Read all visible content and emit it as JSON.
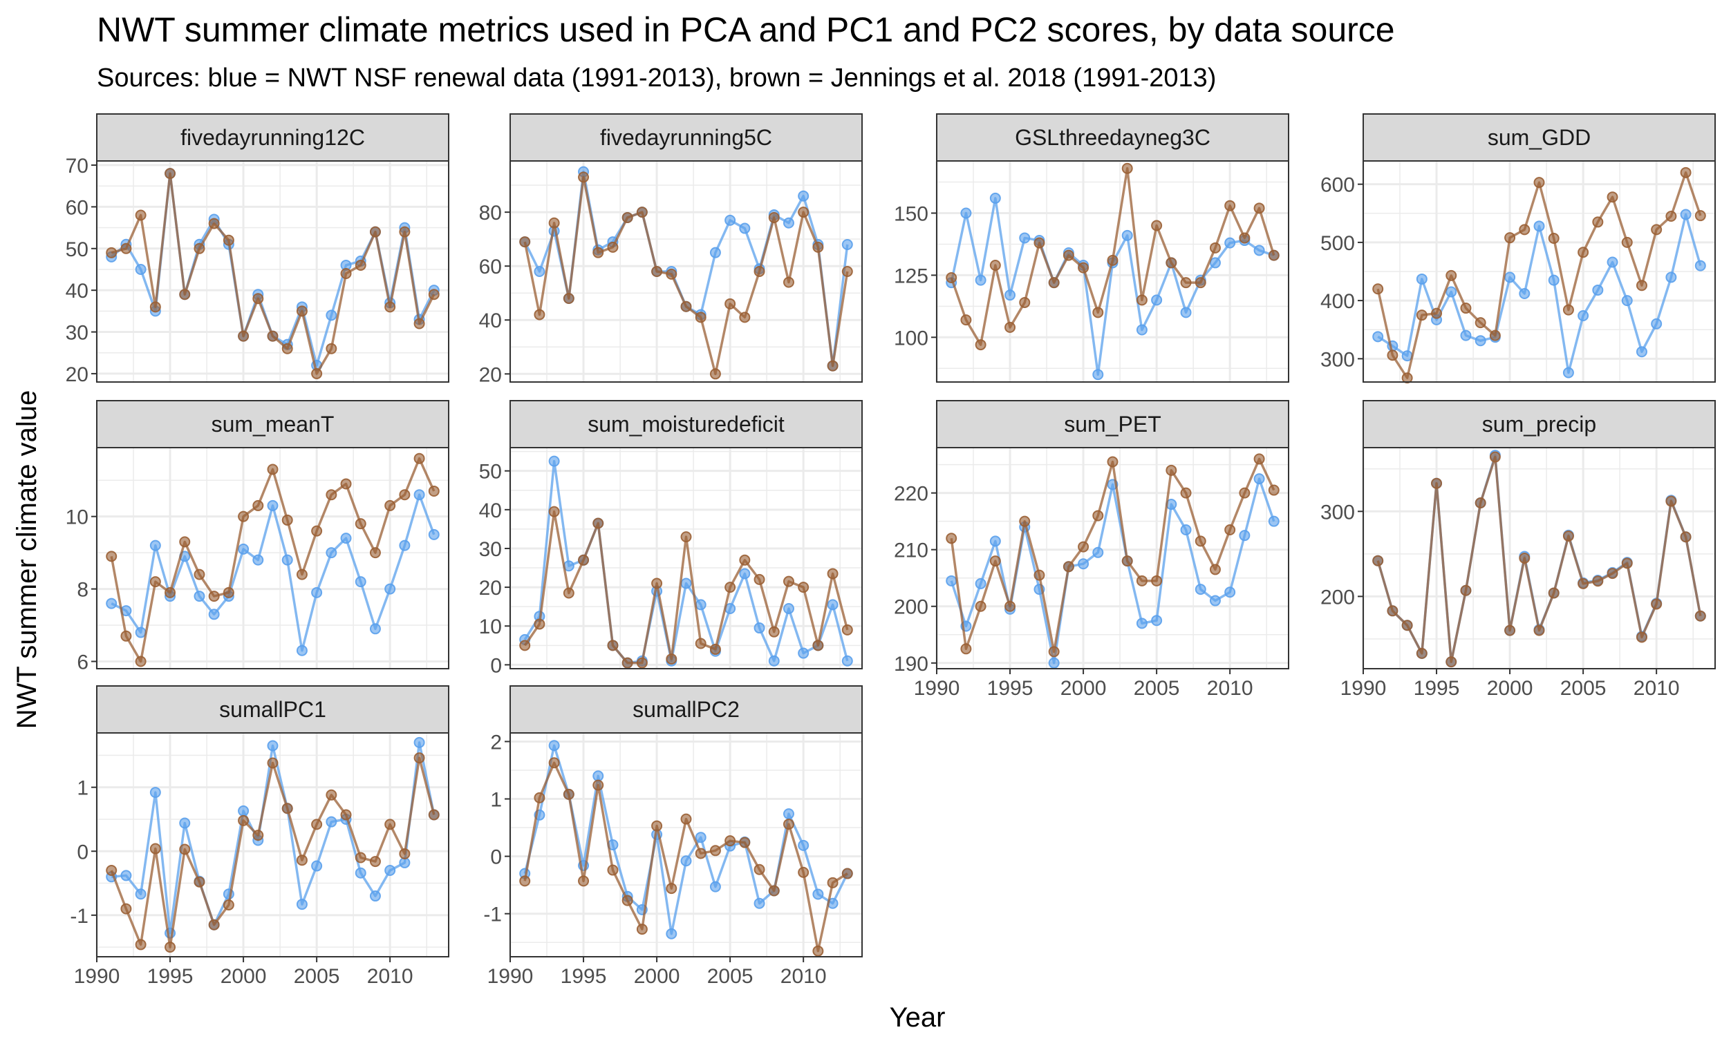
{
  "title": "NWT summer climate metrics used in PCA and PC1 and PC2 scores, by data source",
  "subtitle": "Sources: blue = NWT NSF renewal data (1991-2013), brown = Jennings et al. 2018 (1991-2013)",
  "colors": {
    "blue": "#5aa0ec",
    "brown": "#9a5f34",
    "strip_fill": "#d9d9d9",
    "grid": "#ebebeb"
  },
  "chart_data": {
    "type": "line",
    "xlabel": "Year",
    "ylabel": "NWT summer climate value",
    "x_ticks": [
      1990,
      1995,
      2000,
      2005,
      2010
    ],
    "xlim": [
      1990,
      2014
    ],
    "series_names": [
      "NWT NSF renewal data",
      "Jennings et al. 2018"
    ],
    "years": [
      1991,
      1992,
      1993,
      1994,
      1995,
      1996,
      1997,
      1998,
      1999,
      2000,
      2001,
      2002,
      2003,
      2004,
      2005,
      2006,
      2007,
      2008,
      2009,
      2010,
      2011,
      2012,
      2013
    ],
    "panels": [
      {
        "name": "fivedayrunning12C",
        "ylim": [
          18,
          71
        ],
        "yticks": [
          20,
          30,
          40,
          50,
          60,
          70
        ],
        "blue": [
          48,
          51,
          45,
          35,
          68,
          39,
          51,
          57,
          51,
          29,
          39,
          29,
          27,
          36,
          22,
          34,
          46,
          47,
          54,
          37,
          55,
          33,
          40
        ],
        "brown": [
          49,
          50,
          58,
          36,
          68,
          39,
          50,
          56,
          52,
          29,
          38,
          29,
          26,
          35,
          20,
          26,
          44,
          46,
          54,
          36,
          54,
          32,
          39
        ]
      },
      {
        "name": "fivedayrunning5C",
        "ylim": [
          17,
          99
        ],
        "yticks": [
          20,
          40,
          60,
          80
        ],
        "blue": [
          69,
          58,
          73,
          48,
          95,
          66,
          69,
          78,
          80,
          58,
          58,
          45,
          42,
          65,
          77,
          74,
          59,
          79,
          76,
          86,
          68,
          23,
          68
        ],
        "brown": [
          69,
          42,
          76,
          48,
          93,
          65,
          67,
          78,
          80,
          58,
          57,
          45,
          41,
          20,
          46,
          41,
          58,
          78,
          54,
          80,
          67,
          23,
          58
        ]
      },
      {
        "name": "GSLthreedayneg3C",
        "ylim": [
          82,
          171
        ],
        "yticks": [
          100,
          125,
          150
        ],
        "blue": [
          122,
          150,
          123,
          156,
          117,
          140,
          139,
          122,
          134,
          129,
          85,
          130,
          141,
          103,
          115,
          130,
          110,
          123,
          130,
          138,
          139,
          135,
          133
        ],
        "brown": [
          124,
          107,
          97,
          129,
          104,
          114,
          138,
          122,
          133,
          128,
          110,
          131,
          168,
          115,
          145,
          130,
          122,
          122,
          136,
          153,
          140,
          152,
          133
        ]
      },
      {
        "name": "sum_GDD",
        "ylim": [
          260,
          640
        ],
        "yticks": [
          300,
          400,
          500,
          600
        ],
        "blue": [
          338,
          322,
          305,
          437,
          367,
          415,
          340,
          331,
          337,
          440,
          412,
          528,
          435,
          276,
          374,
          418,
          466,
          400,
          312,
          360,
          440,
          548,
          460
        ],
        "brown": [
          420,
          306,
          267,
          375,
          378,
          443,
          387,
          362,
          340,
          508,
          522,
          603,
          507,
          384,
          483,
          535,
          578,
          500,
          426,
          522,
          545,
          620,
          546
        ]
      },
      {
        "name": "sum_meanT",
        "ylim": [
          5.8,
          11.9
        ],
        "yticks": [
          6,
          8,
          10
        ],
        "blue": [
          7.6,
          7.4,
          6.8,
          9.2,
          7.8,
          8.9,
          7.8,
          7.3,
          7.8,
          9.1,
          8.8,
          10.3,
          8.8,
          6.3,
          7.9,
          9.0,
          9.4,
          8.2,
          6.9,
          8.0,
          9.2,
          10.6,
          9.5
        ],
        "brown": [
          8.9,
          6.7,
          6.0,
          8.2,
          7.9,
          9.3,
          8.4,
          7.8,
          7.9,
          10.0,
          10.3,
          11.3,
          9.9,
          8.4,
          9.6,
          10.6,
          10.9,
          9.8,
          9.0,
          10.3,
          10.6,
          11.6,
          10.7
        ]
      },
      {
        "name": "sum_moisturedeficit",
        "ylim": [
          -1,
          56
        ],
        "yticks": [
          0,
          10,
          20,
          30,
          40,
          50
        ],
        "blue": [
          6.5,
          12.5,
          52.5,
          25.5,
          27,
          36.5,
          5,
          0.5,
          1,
          19,
          1,
          21,
          15.5,
          3.5,
          14.5,
          23.5,
          9.5,
          1,
          14.5,
          3,
          5,
          15.5,
          1
        ],
        "brown": [
          5,
          10.5,
          39.5,
          18.5,
          27,
          36.5,
          5,
          0.5,
          0.5,
          21,
          1.5,
          33,
          5.5,
          4,
          20,
          27,
          22,
          8.5,
          21.5,
          20,
          5,
          23.5,
          9
        ]
      },
      {
        "name": "sum_PET",
        "ylim": [
          189,
          228
        ],
        "yticks": [
          190,
          200,
          210,
          220
        ],
        "blue": [
          204.5,
          196.5,
          204,
          211.5,
          199.5,
          214,
          203,
          190,
          207,
          207.5,
          209.5,
          221.5,
          208,
          197,
          197.5,
          218,
          213.5,
          203,
          201,
          202.5,
          212.5,
          222.5,
          215
        ],
        "brown": [
          212,
          192.5,
          200,
          208,
          200,
          215,
          205.5,
          192,
          207,
          210.5,
          216,
          225.5,
          208,
          204.5,
          204.5,
          224,
          220,
          211.5,
          206.5,
          213.5,
          220,
          226,
          220.5
        ]
      },
      {
        "name": "sum_precip",
        "ylim": [
          115,
          375
        ],
        "yticks": [
          200,
          300
        ],
        "blue": [
          242,
          183,
          166,
          133,
          333,
          123,
          207,
          310,
          366,
          160,
          247,
          161,
          204,
          272,
          216,
          219,
          228,
          240,
          153,
          192,
          313,
          270,
          177
        ],
        "brown": [
          242,
          183,
          166,
          133,
          333,
          123,
          207,
          310,
          364,
          160,
          245,
          160,
          204,
          271,
          215,
          218,
          227,
          239,
          152,
          191,
          312,
          270,
          177
        ]
      },
      {
        "name": "sumallPC1",
        "ylim": [
          -1.65,
          1.85
        ],
        "yticks": [
          -1,
          0,
          1
        ],
        "blue": [
          -0.4,
          -0.38,
          -0.67,
          0.92,
          -1.28,
          0.44,
          -0.47,
          -1.15,
          -0.67,
          0.63,
          0.17,
          1.65,
          0.67,
          -0.83,
          -0.23,
          0.46,
          0.5,
          -0.34,
          -0.7,
          -0.3,
          -0.18,
          1.7,
          0.57
        ],
        "brown": [
          -0.3,
          -0.9,
          -1.46,
          0.04,
          -1.5,
          0.03,
          -0.48,
          -1.15,
          -0.84,
          0.48,
          0.25,
          1.38,
          0.67,
          -0.14,
          0.42,
          0.88,
          0.57,
          -0.1,
          -0.16,
          0.42,
          -0.04,
          1.46,
          0.57
        ]
      },
      {
        "name": "sumallPC2",
        "ylim": [
          -1.75,
          2.15
        ],
        "yticks": [
          -1,
          0,
          1,
          2
        ],
        "blue": [
          -0.3,
          0.72,
          1.93,
          1.08,
          -0.16,
          1.4,
          0.2,
          -0.7,
          -0.93,
          0.38,
          -1.35,
          -0.08,
          0.33,
          -0.53,
          0.18,
          0.25,
          -0.82,
          -0.6,
          0.74,
          0.19,
          -0.66,
          -0.82,
          -0.3
        ],
        "brown": [
          -0.43,
          1.02,
          1.63,
          1.08,
          -0.43,
          1.24,
          -0.24,
          -0.77,
          -1.27,
          0.53,
          -0.56,
          0.65,
          0.05,
          0.1,
          0.27,
          0.24,
          -0.23,
          -0.6,
          0.56,
          -0.28,
          -1.65,
          -0.46,
          -0.3
        ]
      }
    ]
  }
}
